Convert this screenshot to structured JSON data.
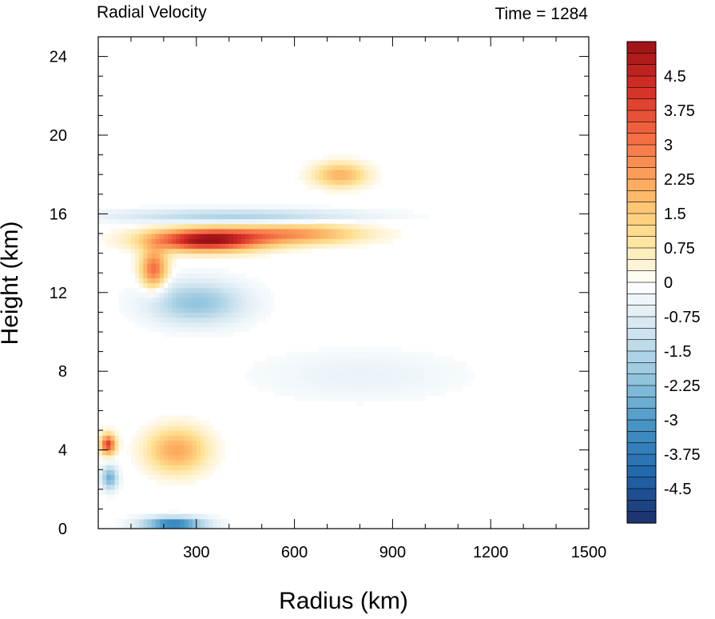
{
  "chart_data": {
    "type": "heatmap",
    "title_left": "Radial Velocity",
    "title_right": "Time = 1284",
    "xlabel": "Radius (km)",
    "ylabel": "Height (km)",
    "xlim": [
      0,
      1500
    ],
    "ylim": [
      0,
      25
    ],
    "x_ticks": [
      300,
      600,
      900,
      1200,
      1500
    ],
    "y_ticks": [
      0,
      4,
      8,
      12,
      16,
      20,
      24
    ],
    "colorbar": {
      "min": -5.25,
      "max": 5.25,
      "step": 0.25,
      "tick_values": [
        4.5,
        3.75,
        3,
        2.25,
        1.5,
        0.75,
        0,
        -0.75,
        -1.5,
        -2.25,
        -3,
        -3.75,
        -4.5
      ],
      "tick_labels": [
        "4.5",
        "3.75",
        "3",
        "2.25",
        "1.5",
        "0.75",
        "0",
        "-0.75",
        "-1.5",
        "-2.25",
        "-3",
        "-3.75",
        "-4.5"
      ],
      "colors": [
        "#1d2e6b",
        "#2166ac",
        "#4393c3",
        "#92c5de",
        "#d1e5f0",
        "#ffffff",
        "#fee090",
        "#fdae61",
        "#f46d43",
        "#d73027",
        "#9b1016"
      ]
    },
    "features": [
      {
        "desc": "outflow jet",
        "r_center": 330,
        "z_center": 14.7,
        "r_width": 170,
        "z_width": 0.55,
        "value": 5.2
      },
      {
        "desc": "outflow jet tail",
        "r_center": 600,
        "z_center": 15.0,
        "r_width": 200,
        "z_width": 0.5,
        "value": 2.4
      },
      {
        "desc": "upper inflow layer",
        "r_center": 420,
        "z_center": 15.9,
        "r_width": 380,
        "z_width": 0.35,
        "value": -1.7
      },
      {
        "desc": "mid-level inflow",
        "r_center": 300,
        "z_center": 11.5,
        "r_width": 150,
        "z_width": 1.1,
        "value": -2.1
      },
      {
        "desc": "mid-level weak inflow",
        "r_center": 800,
        "z_center": 7.8,
        "r_width": 320,
        "z_width": 1.3,
        "value": -0.5
      },
      {
        "desc": "low-level outflow",
        "r_center": 240,
        "z_center": 4.0,
        "r_width": 90,
        "z_width": 1.1,
        "value": 2.2
      },
      {
        "desc": "boundary-layer inflow",
        "r_center": 230,
        "z_center": 0.25,
        "r_width": 100,
        "z_width": 0.35,
        "value": -3.8
      },
      {
        "desc": "eyewall outflow",
        "r_center": 30,
        "z_center": 4.3,
        "r_width": 22,
        "z_width": 0.5,
        "value": 4.0
      },
      {
        "desc": "eyewall inflow",
        "r_center": 35,
        "z_center": 2.6,
        "r_width": 25,
        "z_width": 0.6,
        "value": -2.6
      },
      {
        "desc": "upper outflow branch",
        "r_center": 740,
        "z_center": 18.0,
        "r_width": 80,
        "z_width": 0.6,
        "value": 2.0
      },
      {
        "desc": "near-core outflow",
        "r_center": 170,
        "z_center": 13.2,
        "r_width": 40,
        "z_width": 1.0,
        "value": 3.2
      }
    ]
  }
}
